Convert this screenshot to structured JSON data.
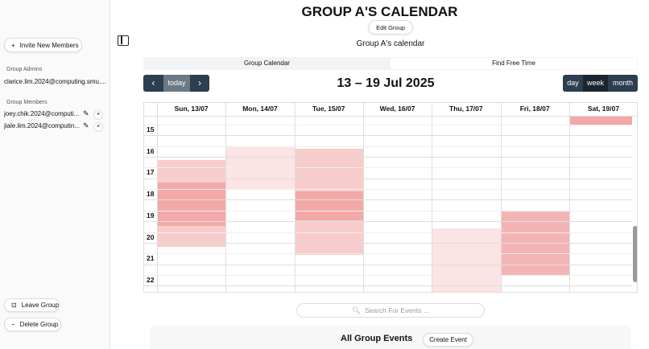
{
  "sidebar": {
    "invite_button": "Invite New Members",
    "admins_heading": "Group Admins",
    "admins": [
      "clarice.lim.2024@computing.smu...."
    ],
    "members_heading": "Group Members",
    "members": [
      "joey.chik.2024@computi...",
      "jiale.lim.2024@computin..."
    ],
    "leave_button": "Leave Group",
    "delete_button": "Delete Group"
  },
  "header": {
    "title": "GROUP A'S CALENDAR",
    "edit_button": "Edit Group",
    "description": "Group A's calendar"
  },
  "tabs": [
    "Group Calendar",
    "Find Free Time"
  ],
  "toolbar": {
    "today": "today",
    "range": "13 – 19 Jul 2025",
    "views": [
      "day",
      "week",
      "month"
    ]
  },
  "calendar": {
    "days": [
      "Sun, 13/07",
      "Mon, 14/07",
      "Tue, 15/07",
      "Wed, 16/07",
      "Thu, 17/07",
      "Fri, 18/07",
      "Sat, 19/07"
    ],
    "hours": [
      "15",
      "16",
      "17",
      "18",
      "19",
      "20",
      "21",
      "22"
    ]
  },
  "events": {
    "search_placeholder": "Search For Events ...",
    "heading": "All Group Events",
    "create_button": "Create Event"
  }
}
